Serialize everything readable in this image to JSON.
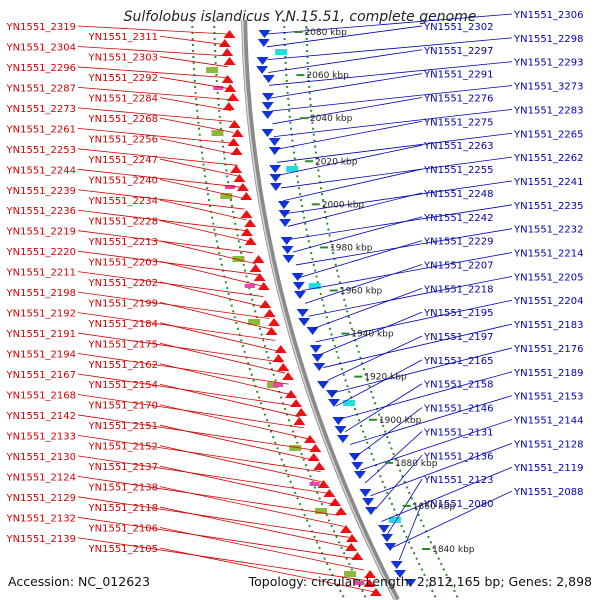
{
  "title": "Sulfolobus islandicus Y.N.15.51, complete genome",
  "footer": {
    "accession": "Accession: NC_012623",
    "summary": "Topology: circular; Length: 2,812,165 bp; Genes: 2,898"
  },
  "colors": {
    "left_label": "#d40000",
    "right_label": "#0000b4",
    "forward_gene": "#ee1111",
    "reverse_gene": "#1133dd",
    "backbone": "#8a8a8a",
    "dotted_ring": "#2a8a2a"
  },
  "scale_marks": [
    "2080 kbp",
    "2060 kbp",
    "2040 kbp",
    "2020 kbp",
    "2000 kbp",
    "1980 kbp",
    "1960 kbp",
    "1940 kbp",
    "1920 kbp",
    "1900 kbp",
    "1880 kbp",
    "1860 kbp",
    "1840 kbp"
  ],
  "left_labels": [
    "YN1551_2319",
    "YN1551_2311",
    "YN1551_2304",
    "YN1551_2303",
    "YN1551_2296",
    "YN1551_2292",
    "YN1551_2287",
    "YN1551_2284",
    "YN1551_2273",
    "YN1551_2268",
    "YN1551_2261",
    "YN1551_2256",
    "YN1551_2253",
    "YN1551_2247",
    "YN1551_2244",
    "YN1551_2240",
    "YN1551_2239",
    "YN1551_2234",
    "YN1551_2236",
    "YN1551_2228",
    "YN1551_2219",
    "YN1551_2213",
    "YN1551_2220",
    "YN1551_2203",
    "YN1551_2211",
    "YN1551_2202",
    "YN1551_2198",
    "YN1551_2199",
    "YN1551_2192",
    "YN1551_2184",
    "YN1551_2191",
    "YN1551_2175",
    "YN1551_2194",
    "YN1551_2162",
    "YN1551_2167",
    "YN1551_2154",
    "YN1551_2168",
    "YN1551_2170",
    "YN1551_2142",
    "YN1551_2151",
    "YN1551_2133",
    "YN1551_2152",
    "YN1551_2130",
    "YN1551_2137",
    "YN1551_2124",
    "YN1551_2138",
    "YN1551_2129",
    "YN1551_2118",
    "YN1551_2132",
    "YN1551_2106",
    "YN1551_2139",
    "YN1551_2105"
  ],
  "right_labels": [
    "YN1551_2306",
    "YN1551_2302",
    "YN1551_2298",
    "YN1551_2297",
    "YN1551_2293",
    "YN1551_2291",
    "YN1551_3273",
    "YN1551_2276",
    "YN1551_2283",
    "YN1551_2275",
    "YN1551_2265",
    "YN1551_2263",
    "YN1551_2262",
    "YN1551_2255",
    "YN1551_2241",
    "YN1551_2248",
    "YN1551_2235",
    "YN1551_2242",
    "YN1551_2232",
    "YN1551_2229",
    "YN1551_2214",
    "YN1551_2207",
    "YN1551_2205",
    "YN1551_2218",
    "YN1551_2204",
    "YN1551_2195",
    "YN1551_2183",
    "YN1551_2197",
    "YN1551_2176",
    "YN1551_2165",
    "YN1551_2189",
    "YN1551_2158",
    "YN1551_2153",
    "YN1551_2146",
    "YN1551_2144",
    "YN1551_2131",
    "YN1551_2128",
    "YN1551_2136",
    "YN1551_2119",
    "YN1551_2123",
    "YN1551_2088",
    "YN1551_2080"
  ]
}
